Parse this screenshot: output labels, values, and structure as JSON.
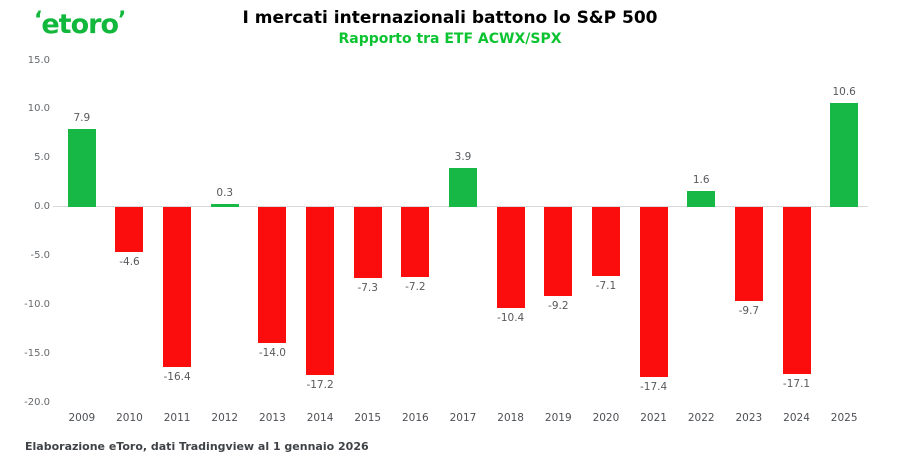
{
  "brand": {
    "logo_text": "etoro",
    "logo_horn_left": "‘",
    "logo_horn_right": "’",
    "logo_color": "#11b83c"
  },
  "header": {
    "title": "I mercati internazionali battono lo S&P 500",
    "subtitle": "Rapporto tra ETF ACWX/SPX",
    "subtitle_color": "#0cc331"
  },
  "footer": {
    "source": "Elaborazione eToro, dati Tradingview al 1 gennaio 2026"
  },
  "chart_data": {
    "type": "bar",
    "title": "I mercati internazionali battono lo S&P 500",
    "subtitle": "Rapporto tra ETF ACWX/SPX",
    "categories": [
      "2009",
      "2010",
      "2011",
      "2012",
      "2013",
      "2014",
      "2015",
      "2016",
      "2017",
      "2018",
      "2019",
      "2020",
      "2021",
      "2022",
      "2023",
      "2024",
      "2025"
    ],
    "values": [
      7.9,
      -4.6,
      -16.4,
      0.3,
      -14.0,
      -17.2,
      -7.3,
      -7.2,
      3.9,
      -10.4,
      -9.2,
      -7.1,
      -17.4,
      1.6,
      -9.7,
      -17.1,
      10.6
    ],
    "labels": [
      "7.9",
      "-4.6",
      "-16.4",
      "0.3",
      "-14.0",
      "-17.2",
      "-7.3",
      "-7.2",
      "3.9",
      "-10.4",
      "-9.2",
      "-7.1",
      "-17.4",
      "1.6",
      "-9.7",
      "-17.1",
      "10.6"
    ],
    "ylim": [
      -20,
      15
    ],
    "yticks": [
      15,
      10,
      5,
      0,
      -5,
      -10,
      -15,
      -20
    ],
    "ytick_labels": [
      "15.0",
      "10.0",
      "5.0",
      "0.0",
      "-5.0",
      "-10.0",
      "-15.0",
      "-20.0"
    ],
    "xlabel": "",
    "ylabel": "",
    "grid": false,
    "legend": false,
    "positive_color": "#17b845",
    "negative_color": "#fb0d0d",
    "zero_line_color": "#d9d9d9"
  }
}
